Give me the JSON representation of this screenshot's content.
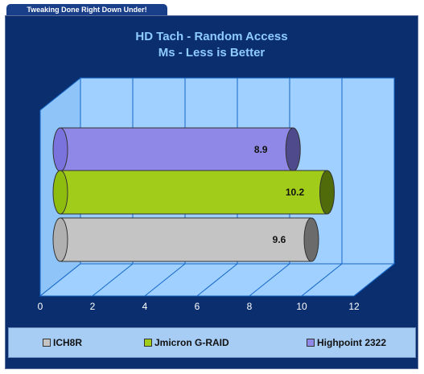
{
  "header": {
    "tab_label": "Tweaking Done Right Down Under!"
  },
  "chart_data": {
    "type": "bar",
    "orientation": "horizontal",
    "title": "HD Tach - Random Access",
    "subtitle": "Ms - Less is Better",
    "xlim": [
      0,
      12
    ],
    "xticks": [
      0,
      2,
      4,
      6,
      8,
      10,
      12
    ],
    "grid": true,
    "legend_position": "bottom",
    "series": [
      {
        "name": "Highpoint 2322",
        "value": 8.9,
        "label": "8.9",
        "color": "#8f88e6"
      },
      {
        "name": "Jmicron G-RAID",
        "value": 10.2,
        "label": "10.2",
        "color": "#a2cc1a"
      },
      {
        "name": "ICH8R",
        "value": 9.6,
        "label": "9.6",
        "color": "#c4c4c4"
      }
    ],
    "legend": [
      {
        "name": "ICH8R",
        "color": "#c4c4c4"
      },
      {
        "name": "Jmicron G-RAID",
        "color": "#a2cc1a"
      },
      {
        "name": "Highpoint 2322",
        "color": "#8f88e6"
      }
    ]
  }
}
